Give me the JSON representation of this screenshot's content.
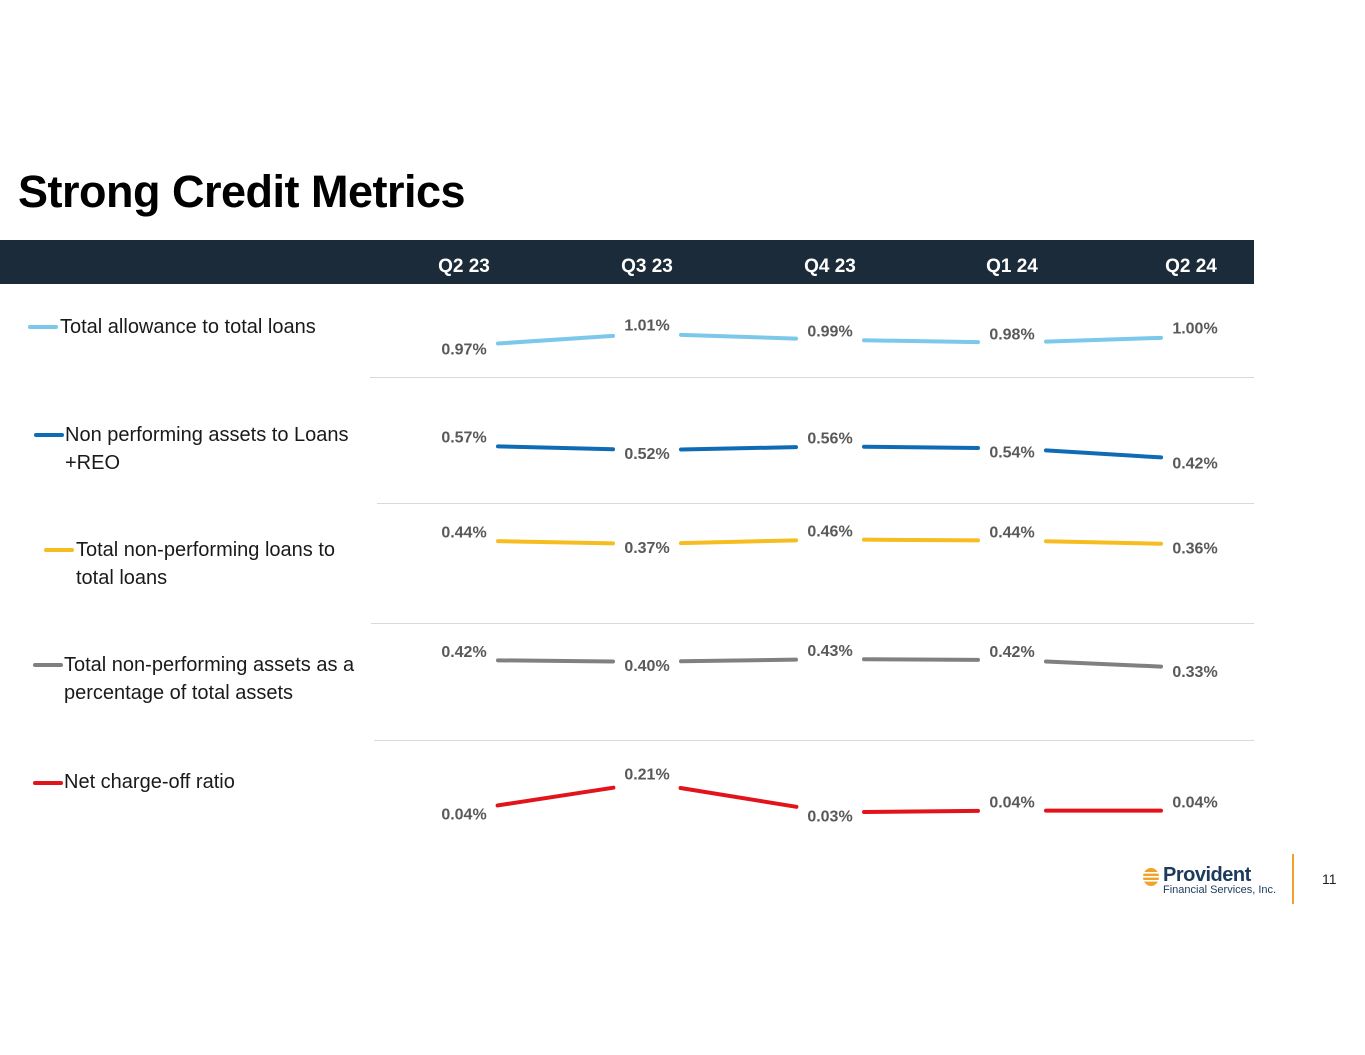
{
  "page": {
    "title": "Strong Credit Metrics",
    "page_number": "11"
  },
  "logo": {
    "name": "Provident",
    "subtitle": "Financial Services, Inc."
  },
  "colors": {
    "header_bg": "#1b2b39",
    "series": [
      "#7cc8ea",
      "#0f6cb4",
      "#f5bd1f",
      "#808080",
      "#e3131b"
    ],
    "logo_orange": "#f0a32a",
    "logo_navy": "#1b3a5c"
  },
  "chart_data": {
    "type": "line",
    "title": "Strong Credit Metrics",
    "categories": [
      "Q2 23",
      "Q3 23",
      "Q4 23",
      "Q1 24",
      "Q2 24"
    ],
    "series": [
      {
        "name": "Total allowance to total loans",
        "values": [
          0.97,
          1.01,
          0.99,
          0.98,
          1.0
        ],
        "labels": [
          "0.97%",
          "1.01%",
          "0.99%",
          "0.98%",
          "1.00%"
        ]
      },
      {
        "name": "Non performing assets to Loans +REO",
        "values": [
          0.57,
          0.52,
          0.56,
          0.54,
          0.42
        ],
        "labels": [
          "0.57%",
          "0.52%",
          "0.56%",
          "0.54%",
          "0.42%"
        ]
      },
      {
        "name": "Total non-performing loans to total loans",
        "values": [
          0.44,
          0.37,
          0.46,
          0.44,
          0.36
        ],
        "labels": [
          "0.44%",
          "0.37%",
          "0.46%",
          "0.44%",
          "0.36%"
        ]
      },
      {
        "name": "Total non-performing assets as a percentage of total assets",
        "values": [
          0.42,
          0.4,
          0.43,
          0.42,
          0.33
        ],
        "labels": [
          "0.42%",
          "0.40%",
          "0.43%",
          "0.42%",
          "0.33%"
        ]
      },
      {
        "name": "Net charge-off ratio",
        "values": [
          0.04,
          0.21,
          0.03,
          0.04,
          0.04
        ],
        "labels": [
          "0.04%",
          "0.21%",
          "0.03%",
          "0.04%",
          "0.04%"
        ]
      }
    ],
    "legend_position": "left",
    "grid": false
  }
}
